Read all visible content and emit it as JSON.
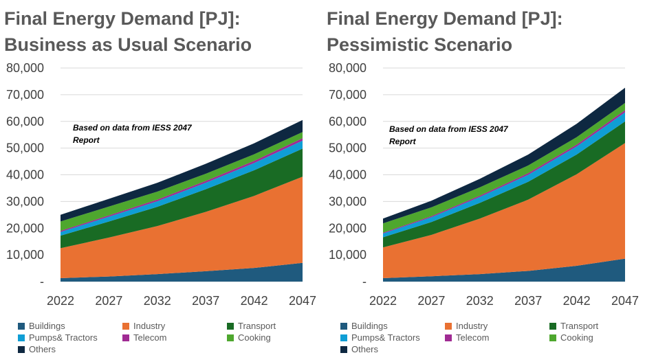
{
  "charts": [
    {
      "id": "bau",
      "title_line1": "Final Energy Demand [PJ]:",
      "title_line2": "Business as Usual Scenario",
      "annotation_line1": "Based on data from IESS 2047",
      "annotation_line2": "Report"
    },
    {
      "id": "pessimistic",
      "title_line1": "Final Energy Demand [PJ]:",
      "title_line2": "Pessimistic Scenario",
      "annotation_line1": "Based on data from IESS 2047",
      "annotation_line2": "Report"
    }
  ],
  "colors": {
    "Buildings": "#1f5a7e",
    "Industry": "#e97132",
    "Transport": "#196b24",
    "Pumps& Tractors": "#0f9ed5",
    "Telecom": "#a02b93",
    "Cooking": "#4ea72e",
    "Others": "#0e2841"
  },
  "chart_data": [
    {
      "type": "area",
      "stacked": true,
      "title": "Final Energy Demand [PJ]: Business as Usual Scenario",
      "categories": [
        "2022",
        "2027",
        "2032",
        "2037",
        "2042",
        "2047"
      ],
      "ylim": [
        0,
        80000
      ],
      "yticks": [
        "-",
        "10,000",
        "20,000",
        "30,000",
        "40,000",
        "50,000",
        "60,000",
        "70,000",
        "80,000"
      ],
      "grid": true,
      "legend": "bottom",
      "series": [
        {
          "name": "Buildings",
          "values": [
            1300,
            1900,
            2800,
            3900,
            5100,
            7000
          ]
        },
        {
          "name": "Industry",
          "values": [
            11200,
            14600,
            18000,
            22200,
            27000,
            32300
          ]
        },
        {
          "name": "Transport",
          "values": [
            4700,
            6000,
            7200,
            8500,
            9600,
            10500
          ]
        },
        {
          "name": "Pumps& Tractors",
          "values": [
            1400,
            1800,
            2100,
            2400,
            2700,
            3000
          ]
        },
        {
          "name": "Telecom",
          "values": [
            400,
            500,
            600,
            700,
            800,
            900
          ]
        },
        {
          "name": "Cooking",
          "values": [
            3500,
            3300,
            3000,
            2700,
            2500,
            2300
          ]
        },
        {
          "name": "Others",
          "values": [
            2500,
            2900,
            3300,
            3700,
            4100,
            4500
          ]
        }
      ]
    },
    {
      "type": "area",
      "stacked": true,
      "title": "Final Energy Demand [PJ]: Pessimistic Scenario",
      "categories": [
        "2022",
        "2027",
        "2032",
        "2037",
        "2042",
        "2047"
      ],
      "ylim": [
        0,
        80000
      ],
      "yticks": [
        "-",
        "10,000",
        "20,000",
        "30,000",
        "40,000",
        "50,000",
        "60,000",
        "70,000",
        "80,000"
      ],
      "grid": true,
      "legend": "bottom",
      "series": [
        {
          "name": "Buildings",
          "values": [
            1300,
            2000,
            2800,
            4000,
            5900,
            8600
          ]
        },
        {
          "name": "Industry",
          "values": [
            11500,
            15500,
            20800,
            26700,
            34300,
            43300
          ]
        },
        {
          "name": "Transport",
          "values": [
            3800,
            4800,
            5900,
            6700,
            7400,
            8100
          ]
        },
        {
          "name": "Pumps& Tractors",
          "values": [
            1400,
            1800,
            2200,
            2600,
            3000,
            3400
          ]
        },
        {
          "name": "Telecom",
          "values": [
            300,
            400,
            500,
            600,
            700,
            800
          ]
        },
        {
          "name": "Cooking",
          "values": [
            3500,
            3300,
            3100,
            2900,
            2800,
            2700
          ]
        },
        {
          "name": "Others",
          "values": [
            1800,
            2500,
            3200,
            4100,
            5000,
            5700
          ]
        }
      ]
    }
  ]
}
